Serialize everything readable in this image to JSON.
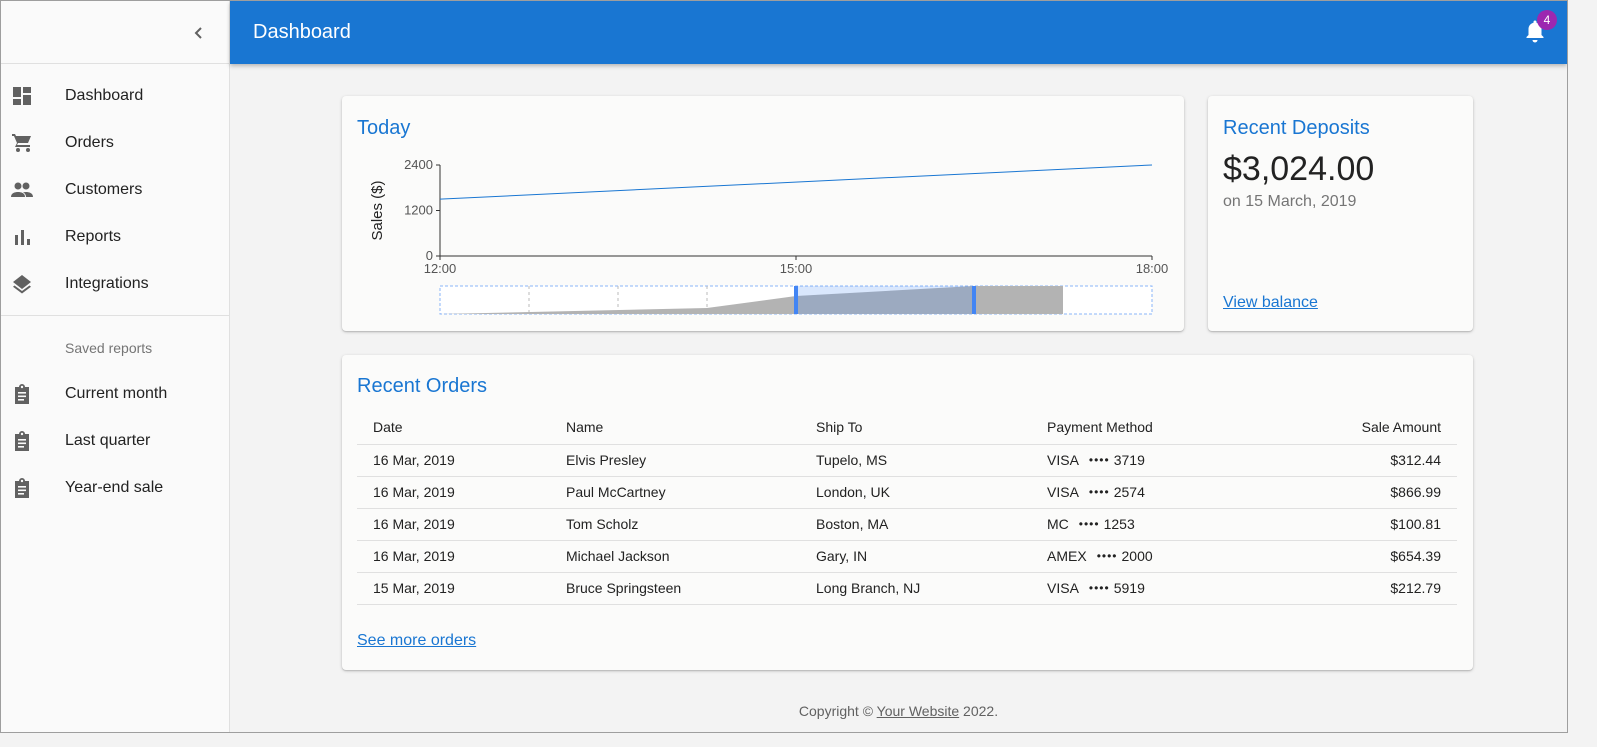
{
  "appbar": {
    "title": "Dashboard",
    "notification_count": "4"
  },
  "sidebar": {
    "items": [
      {
        "label": "Dashboard",
        "icon": "dashboard-icon"
      },
      {
        "label": "Orders",
        "icon": "cart-icon"
      },
      {
        "label": "Customers",
        "icon": "people-icon"
      },
      {
        "label": "Reports",
        "icon": "bar-chart-icon"
      },
      {
        "label": "Integrations",
        "icon": "layers-icon"
      }
    ],
    "saved_header": "Saved reports",
    "saved_items": [
      {
        "label": "Current month",
        "icon": "assignment-icon"
      },
      {
        "label": "Last quarter",
        "icon": "assignment-icon"
      },
      {
        "label": "Year-end sale",
        "icon": "assignment-icon"
      }
    ]
  },
  "today": {
    "title": "Today",
    "chart_data": {
      "type": "line",
      "ylabel": "Sales ($)",
      "x_ticks": [
        "12:00",
        "15:00",
        "18:00"
      ],
      "y_ticks": [
        "2400",
        "1200",
        "0"
      ],
      "ylim": [
        0,
        2400
      ],
      "series": [
        {
          "x": [
            "12:00",
            "18:00"
          ],
          "values": [
            1500,
            2400
          ]
        }
      ],
      "brush_selection": [
        "15:00",
        "16:30"
      ],
      "colors": {
        "line": "#1976d2"
      }
    }
  },
  "deposits": {
    "title": "Recent Deposits",
    "amount": "$3,024.00",
    "date": "on 15 March, 2019",
    "link": "View balance"
  },
  "orders": {
    "title": "Recent Orders",
    "columns": [
      "Date",
      "Name",
      "Ship To",
      "Payment Method",
      "Sale Amount"
    ],
    "rows": [
      {
        "date": "16 Mar, 2019",
        "name": "Elvis Presley",
        "ship": "Tupelo, MS",
        "method": "VISA",
        "dots": "••••",
        "card": "3719",
        "amount": "$312.44"
      },
      {
        "date": "16 Mar, 2019",
        "name": "Paul McCartney",
        "ship": "London, UK",
        "method": "VISA",
        "dots": "••••",
        "card": "2574",
        "amount": "$866.99"
      },
      {
        "date": "16 Mar, 2019",
        "name": "Tom Scholz",
        "ship": "Boston, MA",
        "method": "MC",
        "dots": "••••",
        "card": "1253",
        "amount": "$100.81"
      },
      {
        "date": "16 Mar, 2019",
        "name": "Michael Jackson",
        "ship": "Gary, IN",
        "method": "AMEX",
        "dots": "••••",
        "card": "2000",
        "amount": "$654.39"
      },
      {
        "date": "15 Mar, 2019",
        "name": "Bruce Springsteen",
        "ship": "Long Branch, NJ",
        "method": "VISA",
        "dots": "••••",
        "card": "5919",
        "amount": "$212.79"
      }
    ],
    "more_link": "See more orders"
  },
  "footer": {
    "prefix": "Copyright © ",
    "link": "Your Website",
    "suffix": " 2022."
  }
}
